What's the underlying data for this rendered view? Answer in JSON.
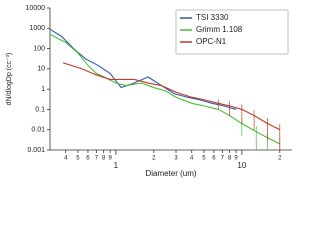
{
  "chart_data": {
    "type": "line",
    "x_label": "Diameter (um)",
    "y_label": "dN/dlogDp (cc⁻³)",
    "xscale": "log",
    "yscale": "log",
    "xlim": [
      0.3,
      25
    ],
    "ylim": [
      0.001,
      10000
    ],
    "xticks": [
      {
        "value": 0.4,
        "label": "4"
      },
      {
        "value": 0.5,
        "label": "5"
      },
      {
        "value": 0.6,
        "label": "6"
      },
      {
        "value": 0.7,
        "label": "7"
      },
      {
        "value": 0.8,
        "label": "8"
      },
      {
        "value": 0.9,
        "label": "9"
      },
      1,
      {
        "value": 2,
        "label": "2"
      },
      {
        "value": 3,
        "label": "3"
      },
      {
        "value": 4,
        "label": "4"
      },
      {
        "value": 5,
        "label": "5"
      },
      {
        "value": 6,
        "label": "6"
      },
      {
        "value": 7,
        "label": "7"
      },
      {
        "value": 8,
        "label": "8"
      },
      {
        "value": 9,
        "label": "9"
      },
      10,
      {
        "value": 20,
        "label": "2"
      }
    ],
    "yticks": [
      0.001,
      0.01,
      0.1,
      1,
      10,
      100,
      1000,
      10000
    ],
    "legend": "top-right",
    "series": [
      {
        "name": "TSI 3330",
        "color": "#2d5aa8",
        "x": [
          0.3,
          0.37,
          0.47,
          0.58,
          0.72,
          0.9,
          1.1,
          1.4,
          1.8,
          2.3,
          2.9,
          3.7,
          4.6,
          5.8,
          7.2,
          9
        ],
        "values": [
          900,
          400,
          90,
          30,
          15,
          6,
          1.2,
          2,
          4,
          1.5,
          0.6,
          0.4,
          0.3,
          0.2,
          0.15,
          0.1
        ],
        "errors": [
          null,
          null,
          null,
          null,
          null,
          null,
          null,
          null,
          null,
          null,
          null,
          null,
          null,
          null,
          null,
          null
        ]
      },
      {
        "name": "Grimm 1.108",
        "color": "#4cbb3c",
        "x": [
          0.3,
          0.4,
          0.5,
          0.6,
          0.7,
          0.8,
          1,
          1.2,
          1.6,
          2,
          2.5,
          3,
          4,
          5,
          6.5,
          8,
          10,
          13,
          16,
          20
        ],
        "values": [
          500,
          200,
          60,
          15,
          6,
          4,
          2,
          1.5,
          2,
          1.2,
          0.8,
          0.4,
          0.2,
          0.15,
          0.1,
          0.05,
          0.02,
          0.008,
          0.004,
          0.002
        ],
        "errors": [
          null,
          null,
          null,
          null,
          null,
          null,
          null,
          null,
          null,
          null,
          null,
          null,
          null,
          null,
          null,
          null,
          0.015,
          0.007,
          0.0035,
          0.0018
        ]
      },
      {
        "name": "OPC-N1",
        "color": "#c0392b",
        "x": [
          0.38,
          0.54,
          0.7,
          0.9,
          1.1,
          1.4,
          1.8,
          2.3,
          3,
          4,
          5,
          6.5,
          8,
          10,
          12.5,
          16,
          20
        ],
        "values": [
          20,
          10,
          5,
          3,
          3,
          3,
          2,
          1.5,
          0.7,
          0.4,
          0.3,
          0.2,
          0.15,
          0.1,
          0.05,
          0.02,
          0.01
        ],
        "errors": [
          null,
          null,
          null,
          null,
          null,
          null,
          null,
          null,
          null,
          null,
          null,
          0.1,
          0.1,
          0.08,
          0.04,
          0.017,
          0.009
        ]
      }
    ]
  }
}
